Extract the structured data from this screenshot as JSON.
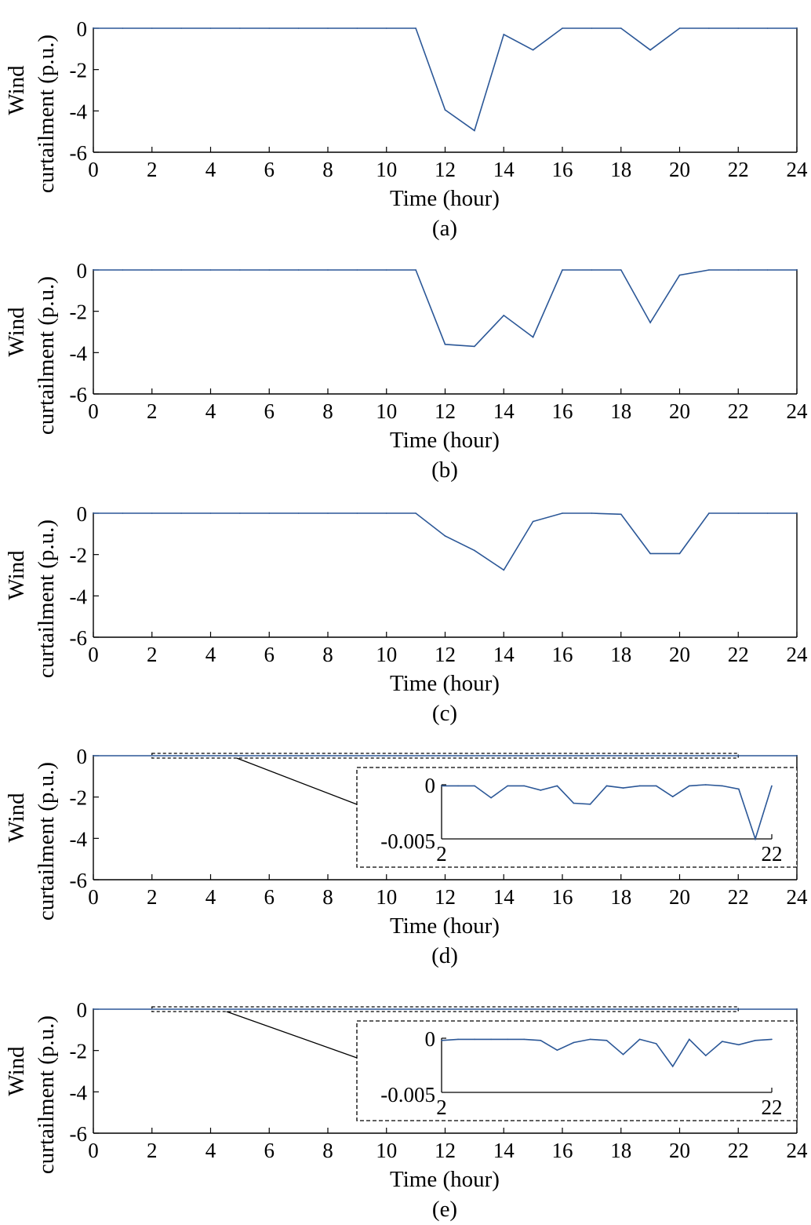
{
  "colors": {
    "series": "#2b5797",
    "axis": "#000000",
    "background": "#ffffff"
  },
  "chart_data": [
    {
      "type": "line",
      "panel_label": "(a)",
      "xlabel": "Time (hour)",
      "ylabel_lines": [
        "Wind",
        "curtailment (p.u.)"
      ],
      "xlim": [
        0,
        24
      ],
      "ylim": [
        -6,
        0
      ],
      "xticks": [
        0,
        2,
        4,
        6,
        8,
        10,
        12,
        14,
        16,
        18,
        20,
        22,
        24
      ],
      "yticks": [
        0,
        -2,
        -4,
        -6
      ],
      "grid": false,
      "series": [
        {
          "x": [
            0,
            1,
            2,
            3,
            4,
            5,
            6,
            7,
            8,
            9,
            10,
            11,
            12,
            13,
            14,
            15,
            16,
            17,
            18,
            19,
            20,
            21,
            22,
            23,
            24
          ],
          "y": [
            0,
            0,
            0,
            0,
            0,
            0,
            0,
            0,
            0,
            0,
            0,
            0,
            -3.95,
            -4.95,
            -0.3,
            -1.05,
            0,
            0,
            0,
            -1.05,
            0,
            0,
            0,
            0,
            0
          ]
        }
      ]
    },
    {
      "type": "line",
      "panel_label": "(b)",
      "xlabel": "Time (hour)",
      "ylabel_lines": [
        "Wind",
        "curtailment (p.u.)"
      ],
      "xlim": [
        0,
        24
      ],
      "ylim": [
        -6,
        0
      ],
      "xticks": [
        0,
        2,
        4,
        6,
        8,
        10,
        12,
        14,
        16,
        18,
        20,
        22,
        24
      ],
      "yticks": [
        0,
        -2,
        -4,
        -6
      ],
      "grid": false,
      "series": [
        {
          "x": [
            0,
            1,
            2,
            3,
            4,
            5,
            6,
            7,
            8,
            9,
            10,
            11,
            12,
            13,
            14,
            15,
            16,
            17,
            18,
            19,
            20,
            21,
            22,
            23,
            24
          ],
          "y": [
            0,
            0,
            0,
            0,
            0,
            0,
            0,
            0,
            0,
            0,
            0,
            0,
            -3.6,
            -3.7,
            -2.2,
            -3.25,
            0,
            0,
            0,
            -2.55,
            -0.25,
            0,
            0,
            0,
            0
          ]
        }
      ]
    },
    {
      "type": "line",
      "panel_label": "(c)",
      "xlabel": "Time (hour)",
      "ylabel_lines": [
        "Wind",
        "curtailment (p.u.)"
      ],
      "xlim": [
        0,
        24
      ],
      "ylim": [
        -6,
        0
      ],
      "xticks": [
        0,
        2,
        4,
        6,
        8,
        10,
        12,
        14,
        16,
        18,
        20,
        22,
        24
      ],
      "yticks": [
        0,
        -2,
        -4,
        -6
      ],
      "grid": false,
      "series": [
        {
          "x": [
            0,
            1,
            2,
            3,
            4,
            5,
            6,
            7,
            8,
            9,
            10,
            11,
            12,
            13,
            14,
            15,
            16,
            17,
            18,
            19,
            20,
            21,
            22,
            23,
            24
          ],
          "y": [
            0,
            0,
            0,
            0,
            0,
            0,
            0,
            0,
            0,
            0,
            0,
            0,
            -1.1,
            -1.8,
            -2.75,
            -0.4,
            0,
            0,
            -0.05,
            -1.95,
            -1.95,
            0,
            0,
            0,
            0
          ]
        }
      ]
    },
    {
      "type": "line",
      "panel_label": "(d)",
      "xlabel": "Time (hour)",
      "ylabel_lines": [
        "Wind",
        "curtailment (p.u.)"
      ],
      "xlim": [
        0,
        24
      ],
      "ylim": [
        -6,
        0
      ],
      "xticks": [
        0,
        2,
        4,
        6,
        8,
        10,
        12,
        14,
        16,
        18,
        20,
        22,
        24
      ],
      "yticks": [
        0,
        -2,
        -4,
        -6
      ],
      "grid": false,
      "series": [
        {
          "x": [
            0,
            24
          ],
          "y": [
            0,
            0
          ]
        }
      ],
      "zoom_region": {
        "x": [
          2,
          22
        ],
        "y": [
          -0.1,
          0.1
        ]
      },
      "inset": {
        "xlim": [
          2,
          22
        ],
        "ylim": [
          -0.005,
          0
        ],
        "xtick_labels": [
          "2",
          "22"
        ],
        "ytick_labels": [
          "0",
          "-0.005"
        ],
        "series": {
          "x": [
            2,
            3,
            4,
            5,
            6,
            7,
            8,
            9,
            10,
            11,
            12,
            13,
            14,
            15,
            16,
            17,
            18,
            19,
            20,
            21,
            22
          ],
          "y": [
            -0.0001,
            -0.0001,
            -0.0001,
            -0.0012,
            -0.0001,
            -0.0001,
            -0.0005,
            -0.0001,
            -0.0017,
            -0.0018,
            -0.0001,
            -0.0003,
            -0.0001,
            -0.0001,
            -0.0011,
            -0.0001,
            0,
            -0.0001,
            -0.0004,
            -0.005,
            -0.0001
          ]
        }
      }
    },
    {
      "type": "line",
      "panel_label": "(e)",
      "xlabel": "Time (hour)",
      "ylabel_lines": [
        "Wind",
        "curtailment (p.u.)"
      ],
      "xlim": [
        0,
        24
      ],
      "ylim": [
        -6,
        0
      ],
      "xticks": [
        0,
        2,
        4,
        6,
        8,
        10,
        12,
        14,
        16,
        18,
        20,
        22,
        24
      ],
      "yticks": [
        0,
        -2,
        -4,
        -6
      ],
      "grid": false,
      "series": [
        {
          "x": [
            0,
            24
          ],
          "y": [
            0,
            0
          ]
        }
      ],
      "zoom_region": {
        "x": [
          2,
          22
        ],
        "y": [
          -0.1,
          0.1
        ]
      },
      "inset": {
        "xlim": [
          2,
          22
        ],
        "ylim": [
          -0.005,
          0
        ],
        "xtick_labels": [
          "2",
          "22"
        ],
        "ytick_labels": [
          "0",
          "-0.005"
        ],
        "series": {
          "x": [
            2,
            3,
            4,
            5,
            6,
            7,
            8,
            9,
            10,
            11,
            12,
            13,
            14,
            15,
            16,
            17,
            18,
            19,
            20,
            21,
            22
          ],
          "y": [
            -0.0002,
            -0.0001,
            -0.0001,
            -0.0001,
            -0.0001,
            -0.0001,
            -0.0002,
            -0.0011,
            -0.0004,
            -0.0001,
            -0.0002,
            -0.0015,
            -0.0001,
            -0.0005,
            -0.0026,
            -0.0001,
            -0.0016,
            -0.0003,
            -0.0006,
            -0.0002,
            -0.0001
          ]
        }
      }
    }
  ]
}
